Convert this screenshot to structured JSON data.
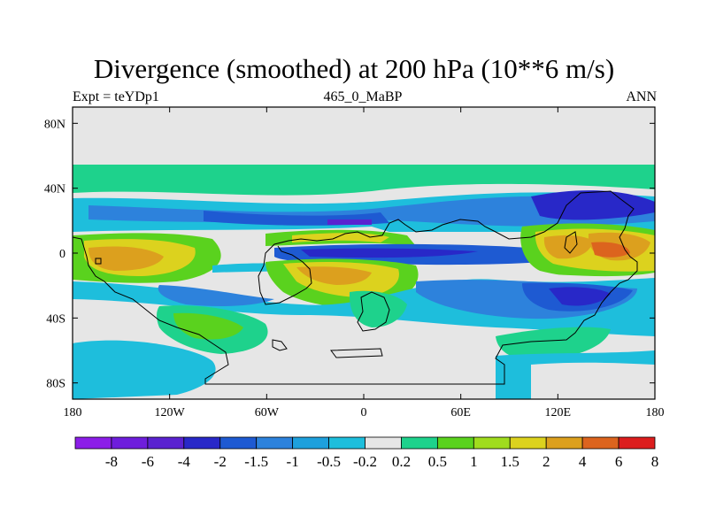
{
  "chart_data": {
    "type": "heatmap",
    "title": "Divergence (smoothed) at 200 hPa (10**6 m/s)",
    "subtitle_left": "Expt = teYDp1",
    "subtitle_center": "465_0_MaBP",
    "subtitle_right": "ANN",
    "xlim": [
      -180,
      180
    ],
    "ylim": [
      -90,
      90
    ],
    "x_ticks": [
      {
        "value": -180,
        "label": "180"
      },
      {
        "value": -120,
        "label": "120W"
      },
      {
        "value": -60,
        "label": "60W"
      },
      {
        "value": 0,
        "label": "0"
      },
      {
        "value": 60,
        "label": "60E"
      },
      {
        "value": 120,
        "label": "120E"
      },
      {
        "value": 180,
        "label": "180"
      }
    ],
    "y_ticks": [
      {
        "value": 80,
        "label": "80N"
      },
      {
        "value": 40,
        "label": "40N"
      },
      {
        "value": 0,
        "label": "0"
      },
      {
        "value": -40,
        "label": "40S"
      },
      {
        "value": -80,
        "label": "80S"
      }
    ],
    "colorbar": {
      "colors": [
        "#8c1ee8",
        "#6e1edc",
        "#5a22d0",
        "#2828c8",
        "#1e5ad2",
        "#2d82dc",
        "#1ea0dc",
        "#1ebedc",
        "#e6e6e6",
        "#1ed28c",
        "#5ad21e",
        "#a0dc1e",
        "#dcd21e",
        "#dca01e",
        "#dc641e",
        "#dc1e1e"
      ],
      "labels": [
        "-8",
        "-6",
        "-4",
        "-2",
        "-1.5",
        "-1",
        "-0.5",
        "-0.2",
        "0.2",
        "0.5",
        "1",
        "1.5",
        "2",
        "4",
        "6",
        "8"
      ]
    }
  }
}
